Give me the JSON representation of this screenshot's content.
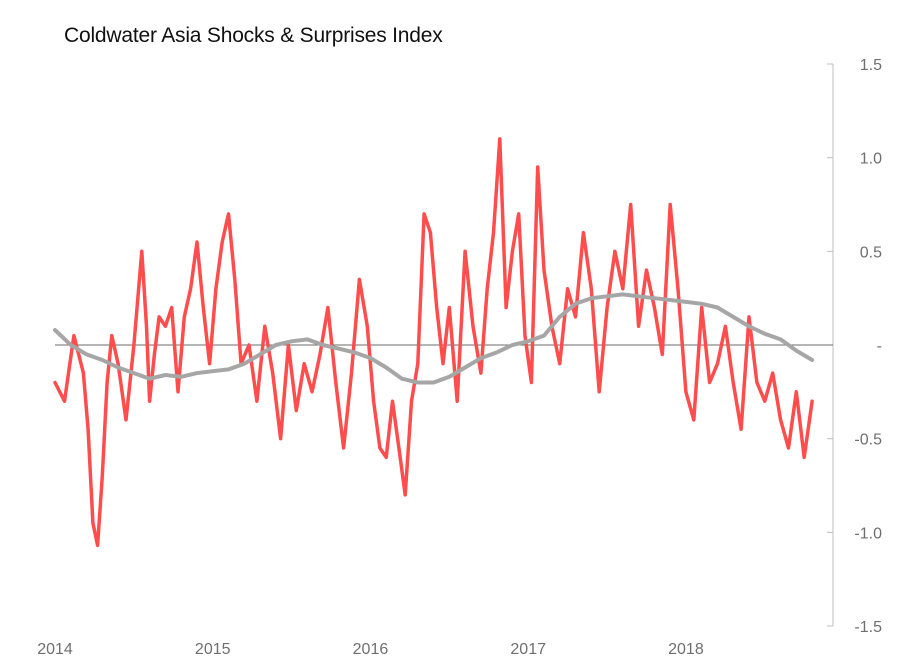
{
  "chart_data": {
    "type": "line",
    "title": "Coldwater Asia Shocks & Surprises Index",
    "x_tick_labels": [
      "2014",
      "2015",
      "2016",
      "2017",
      "2018"
    ],
    "y_tick_labels": [
      "1.5",
      "1.0",
      "0.5",
      "-",
      "-0.5",
      "-1.0",
      "-1.5"
    ],
    "y_ticks": [
      1.5,
      1.0,
      0.5,
      0,
      -0.5,
      -1.0,
      -1.5
    ],
    "ylim": [
      -1.5,
      1.5
    ],
    "xlim": [
      2014.0,
      2018.85
    ],
    "grid": false,
    "legend": "none",
    "series": [
      {
        "color": "#ff4d4d",
        "x": [
          2014.0,
          2014.06,
          2014.12,
          2014.18,
          2014.21,
          2014.24,
          2014.27,
          2014.3,
          2014.33,
          2014.36,
          2014.4,
          2014.45,
          2014.5,
          2014.55,
          2014.58,
          2014.6,
          2014.63,
          2014.66,
          2014.7,
          2014.74,
          2014.78,
          2014.82,
          2014.86,
          2014.9,
          2014.94,
          2014.98,
          2015.02,
          2015.06,
          2015.1,
          2015.14,
          2015.18,
          2015.23,
          2015.28,
          2015.33,
          2015.38,
          2015.43,
          2015.48,
          2015.53,
          2015.58,
          2015.63,
          2015.68,
          2015.73,
          2015.78,
          2015.83,
          2015.88,
          2015.93,
          2015.98,
          2016.02,
          2016.06,
          2016.1,
          2016.14,
          2016.18,
          2016.22,
          2016.26,
          2016.3,
          2016.34,
          2016.38,
          2016.42,
          2016.46,
          2016.5,
          2016.55,
          2016.6,
          2016.65,
          2016.7,
          2016.74,
          2016.78,
          2016.82,
          2016.86,
          2016.9,
          2016.94,
          2016.98,
          2017.02,
          2017.06,
          2017.1,
          2017.15,
          2017.2,
          2017.25,
          2017.3,
          2017.35,
          2017.4,
          2017.45,
          2017.5,
          2017.55,
          2017.6,
          2017.65,
          2017.7,
          2017.75,
          2017.8,
          2017.85,
          2017.9,
          2017.95,
          2018.0,
          2018.05,
          2018.1,
          2018.15,
          2018.2,
          2018.25,
          2018.3,
          2018.35,
          2018.4,
          2018.45,
          2018.5,
          2018.55,
          2018.6,
          2018.65,
          2018.7,
          2018.75,
          2018.8
        ],
        "y": [
          -0.2,
          -0.3,
          0.05,
          -0.15,
          -0.45,
          -0.95,
          -1.07,
          -0.7,
          -0.2,
          0.05,
          -0.1,
          -0.4,
          0.0,
          0.5,
          0.1,
          -0.3,
          -0.05,
          0.15,
          0.1,
          0.2,
          -0.25,
          0.15,
          0.3,
          0.55,
          0.2,
          -0.1,
          0.3,
          0.55,
          0.7,
          0.35,
          -0.1,
          0.0,
          -0.3,
          0.1,
          -0.15,
          -0.5,
          0.0,
          -0.35,
          -0.1,
          -0.25,
          -0.05,
          0.2,
          -0.2,
          -0.55,
          -0.15,
          0.35,
          0.1,
          -0.3,
          -0.55,
          -0.6,
          -0.3,
          -0.55,
          -0.8,
          -0.3,
          -0.1,
          0.7,
          0.6,
          0.2,
          -0.1,
          0.2,
          -0.3,
          0.5,
          0.1,
          -0.15,
          0.3,
          0.6,
          1.1,
          0.2,
          0.5,
          0.7,
          0.05,
          -0.2,
          0.95,
          0.4,
          0.1,
          -0.1,
          0.3,
          0.15,
          0.6,
          0.3,
          -0.25,
          0.2,
          0.5,
          0.3,
          0.75,
          0.1,
          0.4,
          0.2,
          -0.05,
          0.75,
          0.3,
          -0.25,
          -0.4,
          0.2,
          -0.2,
          -0.1,
          0.1,
          -0.2,
          -0.45,
          0.15,
          -0.2,
          -0.3,
          -0.15,
          -0.4,
          -0.55,
          -0.25,
          -0.6,
          -0.3
        ]
      },
      {
        "color": "#a6a6a6",
        "x": [
          2014.0,
          2014.1,
          2014.2,
          2014.3,
          2014.4,
          2014.5,
          2014.6,
          2014.7,
          2014.8,
          2014.9,
          2015.0,
          2015.1,
          2015.2,
          2015.3,
          2015.4,
          2015.5,
          2015.6,
          2015.7,
          2015.8,
          2015.9,
          2016.0,
          2016.1,
          2016.2,
          2016.3,
          2016.4,
          2016.5,
          2016.6,
          2016.7,
          2016.8,
          2016.9,
          2017.0,
          2017.1,
          2017.2,
          2017.3,
          2017.4,
          2017.5,
          2017.6,
          2017.7,
          2017.8,
          2017.9,
          2018.0,
          2018.1,
          2018.2,
          2018.3,
          2018.4,
          2018.5,
          2018.6,
          2018.7,
          2018.8
        ],
        "y": [
          0.08,
          0.0,
          -0.05,
          -0.08,
          -0.12,
          -0.15,
          -0.18,
          -0.16,
          -0.17,
          -0.15,
          -0.14,
          -0.13,
          -0.1,
          -0.05,
          0.0,
          0.02,
          0.03,
          0.0,
          -0.02,
          -0.04,
          -0.07,
          -0.12,
          -0.18,
          -0.2,
          -0.2,
          -0.17,
          -0.12,
          -0.07,
          -0.04,
          0.0,
          0.02,
          0.05,
          0.15,
          0.22,
          0.25,
          0.26,
          0.27,
          0.26,
          0.25,
          0.24,
          0.23,
          0.22,
          0.2,
          0.15,
          0.1,
          0.06,
          0.03,
          -0.03,
          -0.08
        ]
      }
    ]
  }
}
